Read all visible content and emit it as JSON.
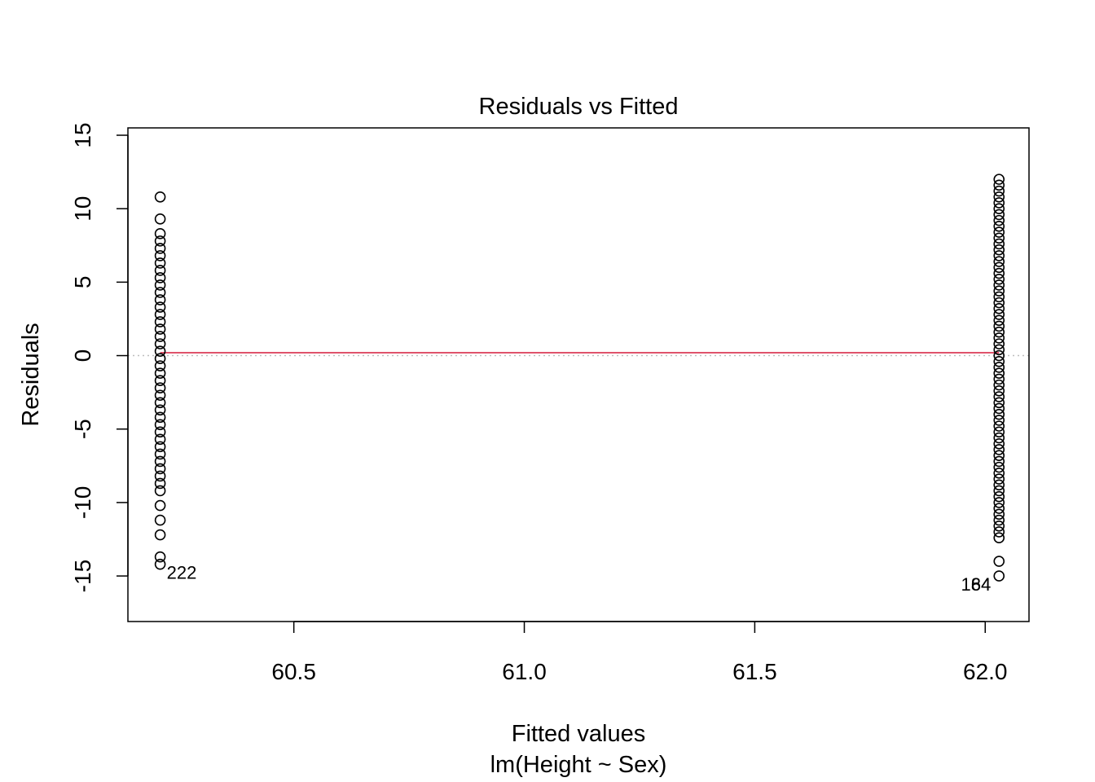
{
  "chart_data": {
    "type": "scatter",
    "title": "Residuals vs Fitted",
    "xlabel": "Fitted values",
    "sublabel": "lm(Height ~ Sex)",
    "ylabel": "Residuals",
    "xlim": [
      60.14,
      62.095
    ],
    "ylim": [
      -18.1,
      15.5
    ],
    "x_ticks": [
      "60.5",
      "61.0",
      "61.5",
      "62.0"
    ],
    "y_ticks": [
      "-15",
      "-10",
      "-5",
      "0",
      "5",
      "10",
      "15"
    ],
    "grid": false,
    "groups": [
      {
        "fitted": 60.21,
        "residuals": [
          10.8,
          9.3,
          8.3,
          7.8,
          7.3,
          6.8,
          6.3,
          5.8,
          5.3,
          4.8,
          4.3,
          3.8,
          3.3,
          2.8,
          2.3,
          1.8,
          1.3,
          0.8,
          0.3,
          -0.2,
          -0.7,
          -1.2,
          -1.7,
          -2.2,
          -2.7,
          -3.2,
          -3.7,
          -4.2,
          -4.7,
          -5.2,
          -5.7,
          -6.2,
          -6.7,
          -7.2,
          -7.7,
          -8.2,
          -8.7,
          -9.2,
          -10.2,
          -11.2,
          -12.2,
          -13.7,
          -14.2
        ]
      },
      {
        "fitted": 62.03,
        "residuals": [
          12.0,
          11.6,
          11.2,
          10.8,
          10.4,
          10.0,
          9.6,
          9.2,
          8.8,
          8.4,
          8.0,
          7.6,
          7.2,
          6.8,
          6.4,
          6.0,
          5.6,
          5.2,
          4.8,
          4.4,
          4.0,
          3.6,
          3.2,
          2.8,
          2.4,
          2.0,
          1.6,
          1.2,
          0.8,
          0.4,
          0.0,
          -0.4,
          -0.8,
          -1.2,
          -1.6,
          -2.0,
          -2.4,
          -2.8,
          -3.2,
          -3.6,
          -4.0,
          -4.4,
          -4.8,
          -5.2,
          -5.6,
          -6.0,
          -6.4,
          -6.8,
          -7.2,
          -7.6,
          -8.0,
          -8.4,
          -8.8,
          -9.2,
          -9.6,
          -10.0,
          -10.4,
          -10.8,
          -11.2,
          -11.6,
          -12.0,
          -12.4,
          -14.0,
          -15.0
        ]
      }
    ],
    "smooth_line": {
      "y": 0.2,
      "color": "#df536b"
    },
    "reference_line": {
      "y": 0,
      "color": "#bebebe",
      "style": "dotted"
    },
    "annotations": [
      {
        "text": "222",
        "x": 60.21,
        "y": -14.2,
        "position": "right-below"
      },
      {
        "text": "184",
        "x": 62.03,
        "y": -15.0,
        "position": "left-below"
      },
      {
        "text": "64",
        "x": 62.03,
        "y": -15.0,
        "position": "left-below"
      }
    ],
    "point_color": "#000000"
  }
}
